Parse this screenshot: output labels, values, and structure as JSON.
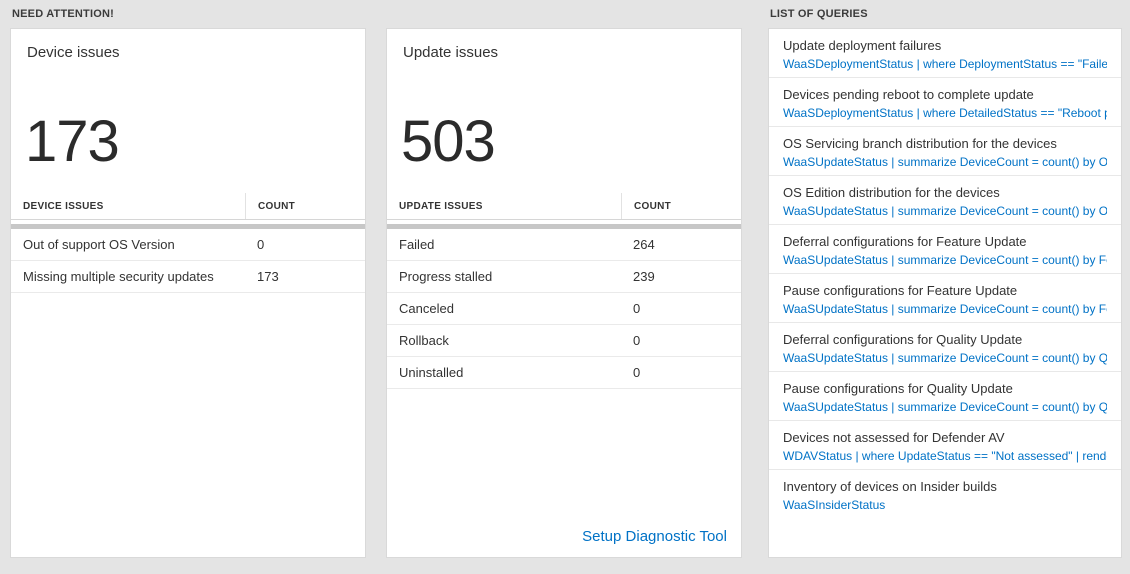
{
  "sections": {
    "need_attention": "NEED ATTENTION!",
    "list_of_queries": "LIST OF QUERIES"
  },
  "colors": {
    "accent_blue": "#0072c6",
    "background": "#e4e4e4"
  },
  "device_card": {
    "title": "Device issues",
    "count": "173",
    "table": {
      "headers": {
        "label": "DEVICE ISSUES",
        "count": "COUNT"
      },
      "rows": [
        {
          "label": "Out of support OS Version",
          "count": "0"
        },
        {
          "label": "Missing multiple security updates",
          "count": "173"
        }
      ]
    }
  },
  "update_card": {
    "title": "Update issues",
    "count": "503",
    "table": {
      "headers": {
        "label": "UPDATE ISSUES",
        "count": "COUNT"
      },
      "rows": [
        {
          "label": "Failed",
          "count": "264"
        },
        {
          "label": "Progress stalled",
          "count": "239"
        },
        {
          "label": "Canceled",
          "count": "0"
        },
        {
          "label": "Rollback",
          "count": "0"
        },
        {
          "label": "Uninstalled",
          "count": "0"
        }
      ]
    },
    "link_label": "Setup Diagnostic Tool"
  },
  "queries": {
    "items": [
      {
        "title": "Update deployment failures",
        "query": "WaaSDeploymentStatus | where DeploymentStatus == \"Failed\" |..."
      },
      {
        "title": "Devices pending reboot to complete update",
        "query": "WaaSDeploymentStatus | where DetailedStatus == \"Reboot pend..."
      },
      {
        "title": "OS Servicing branch distribution for the devices",
        "query": "WaaSUpdateStatus | summarize DeviceCount = count() by OSSer..."
      },
      {
        "title": "OS Edition distribution for the devices",
        "query": "WaaSUpdateStatus | summarize DeviceCount = count() by OSEdit..."
      },
      {
        "title": "Deferral configurations for Feature Update",
        "query": "WaaSUpdateStatus | summarize DeviceCount = count() by Featur..."
      },
      {
        "title": "Pause configurations for Feature Update",
        "query": "WaaSUpdateStatus | summarize DeviceCount = count() by Featur..."
      },
      {
        "title": "Deferral configurations for Quality Update",
        "query": "WaaSUpdateStatus | summarize DeviceCount = count() by Qualit..."
      },
      {
        "title": "Pause configurations for Quality Update",
        "query": "WaaSUpdateStatus | summarize DeviceCount = count() by Qualit..."
      },
      {
        "title": "Devices not assessed for Defender AV",
        "query": "WDAVStatus | where UpdateStatus == \"Not assessed\" | render ta..."
      },
      {
        "title": "Inventory of devices on Insider builds",
        "query": "WaaSInsiderStatus"
      }
    ]
  }
}
